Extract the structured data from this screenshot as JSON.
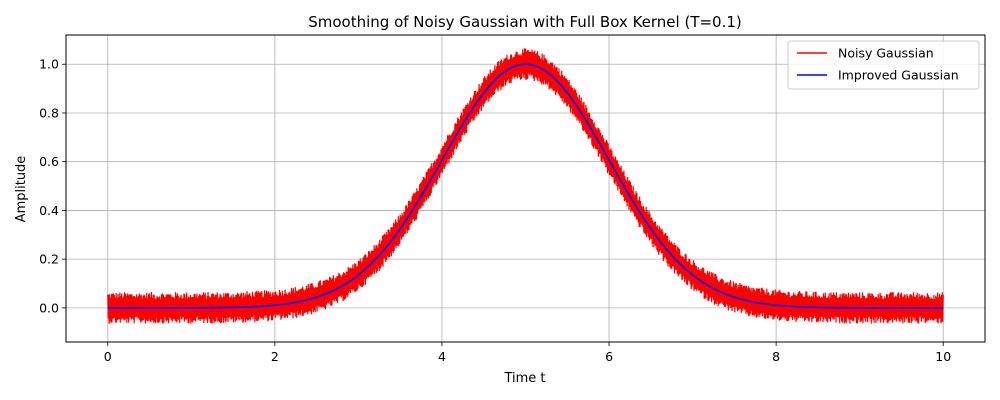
{
  "chart_data": {
    "type": "line",
    "title": "Smoothing of Noisy Gaussian with Full Box Kernel (T=0.1)",
    "xlabel": "Time t",
    "ylabel": "Amplitude",
    "xlim": [
      -0.5,
      10.5
    ],
    "ylim": [
      -0.14,
      1.12
    ],
    "xticks": [
      0,
      2,
      4,
      6,
      8,
      10
    ],
    "xtick_labels": [
      "0",
      "2",
      "4",
      "6",
      "8",
      "10"
    ],
    "yticks": [
      0.0,
      0.2,
      0.4,
      0.6,
      0.8,
      1.0
    ],
    "ytick_labels": [
      "0.0",
      "0.2",
      "0.4",
      "0.6",
      "0.8",
      "1.0"
    ],
    "grid": true,
    "legend_position": "top-right",
    "gaussian": {
      "center": 5,
      "sigma": 1,
      "amplitude": 1
    },
    "noise_band_halfwidth": 0.065,
    "x_range": [
      0,
      10
    ],
    "series": [
      {
        "name": "Noisy Gaussian",
        "color": "#ff0000",
        "style": "noisy-band"
      },
      {
        "name": "Improved Gaussian",
        "color": "#0000ff",
        "style": "smooth-line"
      }
    ]
  }
}
